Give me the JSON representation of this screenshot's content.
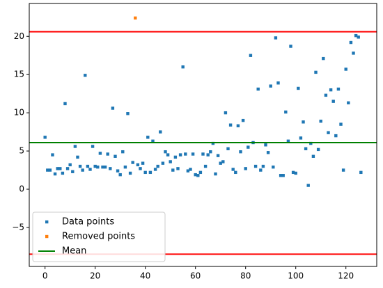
{
  "chart_data": {
    "type": "scatter",
    "series": [
      {
        "name": "Data points",
        "color": "#1f77b4",
        "x": [
          0,
          1,
          2,
          3,
          4,
          5,
          6,
          7,
          8,
          9,
          10,
          11,
          12,
          13,
          14,
          15,
          16,
          17,
          18,
          19,
          20,
          21,
          22,
          23,
          24,
          25,
          26,
          27,
          28,
          29,
          30,
          31,
          32,
          33,
          34,
          35,
          37,
          38,
          39,
          40,
          41,
          42,
          43,
          44,
          45,
          46,
          47,
          48,
          49,
          50,
          51,
          52,
          53,
          54,
          55,
          56,
          57,
          58,
          59,
          60,
          61,
          62,
          63,
          64,
          65,
          66,
          67,
          68,
          69,
          70,
          71,
          72,
          73,
          74,
          75,
          76,
          77,
          78,
          79,
          80,
          81,
          82,
          83,
          84,
          85,
          86,
          87,
          88,
          89,
          90,
          91,
          92,
          93,
          94,
          95,
          96,
          97,
          98,
          99,
          100,
          101,
          102,
          103,
          104,
          105,
          106,
          107,
          108,
          109,
          110,
          111,
          112,
          113,
          114,
          115,
          116,
          117,
          118,
          119,
          120,
          121,
          122,
          123,
          124,
          125,
          126
        ],
        "values": [
          6.8,
          2.5,
          2.5,
          4.5,
          2.0,
          2.7,
          2.7,
          2.1,
          11.2,
          2.7,
          3.2,
          2.3,
          5.6,
          4.2,
          3.0,
          2.5,
          14.9,
          3.0,
          2.6,
          5.6,
          3.0,
          2.9,
          4.7,
          2.9,
          2.9,
          4.6,
          2.7,
          10.6,
          4.3,
          2.4,
          1.9,
          4.9,
          2.9,
          9.9,
          2.1,
          3.5,
          3.2,
          2.7,
          3.4,
          2.2,
          6.8,
          2.2,
          6.3,
          2.6,
          3.0,
          7.5,
          3.4,
          4.9,
          4.5,
          3.6,
          2.5,
          4.2,
          2.7,
          4.5,
          16.0,
          4.6,
          2.4,
          2.6,
          4.6,
          1.9,
          1.8,
          2.2,
          4.6,
          3.0,
          4.5,
          4.9,
          6.0,
          2.0,
          4.4,
          3.4,
          3.6,
          10.0,
          5.3,
          8.4,
          2.6,
          2.2,
          8.3,
          4.9,
          9.0,
          2.7,
          5.5,
          17.5,
          6.1,
          3.0,
          13.1,
          2.5,
          3.0,
          5.8,
          4.8,
          13.5,
          2.9,
          19.8,
          13.9,
          1.8,
          1.8,
          10.1,
          6.3,
          18.7,
          2.2,
          2.1,
          13.2,
          6.7,
          8.8,
          5.3,
          0.5,
          6.0,
          4.3,
          15.3,
          5.2,
          8.9,
          17.1,
          12.3,
          7.4,
          13.0,
          11.5,
          7.0,
          13.1,
          8.5,
          2.5,
          15.7,
          11.3,
          19.2,
          17.8,
          20.1,
          19.9,
          2.2
        ]
      },
      {
        "name": "Removed points",
        "color": "#ff7f0e",
        "x": [
          36
        ],
        "values": [
          22.4
        ]
      }
    ],
    "hlines": [
      {
        "value": 20.6,
        "color": "#ff0000"
      },
      {
        "name": "Mean",
        "value": 6.1,
        "color": "#008000"
      },
      {
        "value": -8.5,
        "color": "#ff0000"
      }
    ],
    "xlim": [
      -6.3,
      132.3
    ],
    "ylim": [
      -10.1,
      24.3
    ],
    "xticks": [
      0,
      20,
      40,
      60,
      80,
      100,
      120
    ],
    "yticks": [
      {
        "value": -5,
        "label": "−5"
      },
      0,
      5,
      10,
      15,
      20
    ],
    "legend": "lower left"
  }
}
